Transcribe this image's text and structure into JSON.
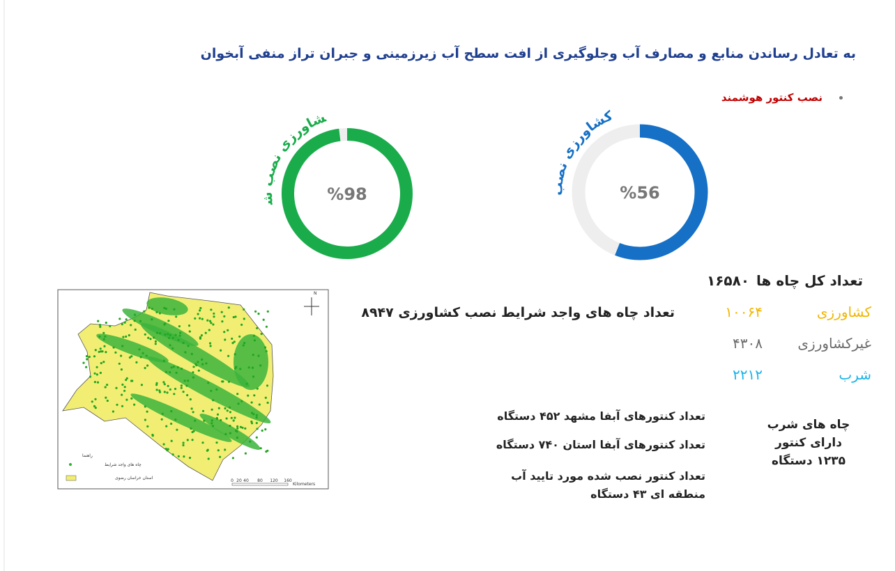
{
  "header": {
    "title": "به تعادل رساندن منابع و مصارف آب وجلوگیری از افت  سطح آب زیرزمینی و جبران تراز منفی آبخوان"
  },
  "bullet": "نصب کنتور هوشمند",
  "donuts": [
    {
      "label": "کشاورزی نصب شده",
      "value": 98,
      "value_label": "%98",
      "color": "#1aac4b"
    },
    {
      "label": "غیرکشاورزی نصب شده",
      "value": 56,
      "value_label": "%56",
      "color": "#1570c6"
    }
  ],
  "stats": {
    "total_label": "تعداد کل چاه ها",
    "total": "۱۶۵۸۰",
    "rows": [
      [
        "کشاورزی",
        "۱۰۰۶۴"
      ],
      [
        "غیرکشاورزی",
        "۴۳۰۸"
      ],
      [
        "شرب",
        "۲۲۱۲"
      ]
    ]
  },
  "eligible": "تعداد چاه های واجد شرایط نصب کشاورزی ۸۹۴۷",
  "meters": [
    "تعداد کنتورهای آبفا مشهد ۴۵۲ دستگاه",
    "تعداد کنتورهای آبفا استان ۷۴۰ دستگاه",
    "تعداد کنتور نصب شده مورد تایید آب منطقه ای ۴۳ دستگاه"
  ],
  "drinking": "چاه های شرب دارای کنتور ۱۲۳۵ دستگاه",
  "map": {
    "north": "N",
    "legend_title": "راهنما",
    "legend": [
      "چاه های واجد شرایط",
      "استان خراسان رضوی"
    ],
    "scale": [
      "0",
      "20",
      "40",
      "80",
      "120",
      "160"
    ],
    "scale_unit": "Kilometers"
  }
}
